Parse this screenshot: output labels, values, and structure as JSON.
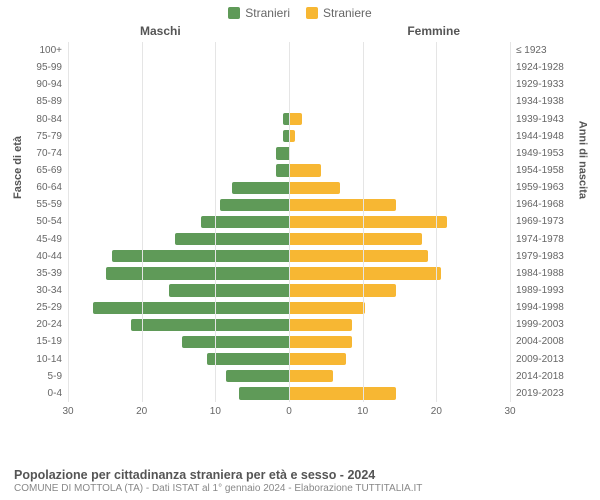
{
  "chart": {
    "type": "population-pyramid",
    "legend": [
      {
        "label": "Stranieri",
        "color": "#5f9a58"
      },
      {
        "label": "Straniere",
        "color": "#f7b733"
      }
    ],
    "column_titles": {
      "left": "Maschi",
      "right": "Femmine"
    },
    "y_axis_left_title": "Fasce di età",
    "y_axis_right_title": "Anni di nascita",
    "x_axis": {
      "max": 35,
      "ticks": [
        30,
        20,
        10,
        0,
        10,
        20,
        30
      ]
    },
    "background_color": "#ffffff",
    "grid_color": "#e5e5e5",
    "center_line_color": "#888888",
    "label_fontsize": 10,
    "title_fontsize": 12,
    "bar_colors": {
      "male": "#5f9a58",
      "female": "#f7b733"
    },
    "rows": [
      {
        "age": "100+",
        "birth": "≤ 1923",
        "m": 0,
        "f": 0
      },
      {
        "age": "95-99",
        "birth": "1924-1928",
        "m": 0,
        "f": 0
      },
      {
        "age": "90-94",
        "birth": "1929-1933",
        "m": 0,
        "f": 0
      },
      {
        "age": "85-89",
        "birth": "1934-1938",
        "m": 0,
        "f": 0
      },
      {
        "age": "80-84",
        "birth": "1939-1943",
        "m": 1,
        "f": 2
      },
      {
        "age": "75-79",
        "birth": "1944-1948",
        "m": 1,
        "f": 1
      },
      {
        "age": "70-74",
        "birth": "1949-1953",
        "m": 2,
        "f": 0
      },
      {
        "age": "65-69",
        "birth": "1954-1958",
        "m": 2,
        "f": 5
      },
      {
        "age": "60-64",
        "birth": "1959-1963",
        "m": 9,
        "f": 8
      },
      {
        "age": "55-59",
        "birth": "1964-1968",
        "m": 11,
        "f": 17
      },
      {
        "age": "50-54",
        "birth": "1969-1973",
        "m": 14,
        "f": 25
      },
      {
        "age": "45-49",
        "birth": "1974-1978",
        "m": 18,
        "f": 21
      },
      {
        "age": "40-44",
        "birth": "1979-1983",
        "m": 28,
        "f": 22
      },
      {
        "age": "35-39",
        "birth": "1984-1988",
        "m": 29,
        "f": 24
      },
      {
        "age": "30-34",
        "birth": "1989-1993",
        "m": 19,
        "f": 17
      },
      {
        "age": "25-29",
        "birth": "1994-1998",
        "m": 31,
        "f": 12
      },
      {
        "age": "20-24",
        "birth": "1999-2003",
        "m": 25,
        "f": 10
      },
      {
        "age": "15-19",
        "birth": "2004-2008",
        "m": 17,
        "f": 10
      },
      {
        "age": "10-14",
        "birth": "2009-2013",
        "m": 13,
        "f": 9
      },
      {
        "age": "5-9",
        "birth": "2014-2018",
        "m": 10,
        "f": 7
      },
      {
        "age": "0-4",
        "birth": "2019-2023",
        "m": 8,
        "f": 17
      }
    ]
  },
  "footer": {
    "title": "Popolazione per cittadinanza straniera per età e sesso - 2024",
    "subtitle": "COMUNE DI MOTTOLA (TA) - Dati ISTAT al 1° gennaio 2024 - Elaborazione TUTTITALIA.IT"
  }
}
